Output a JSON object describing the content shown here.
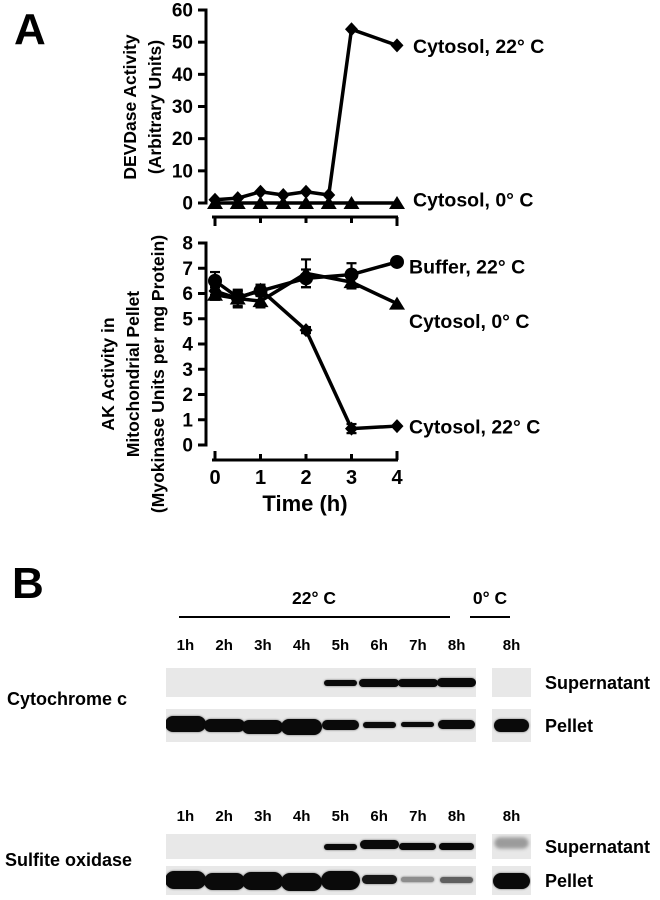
{
  "panels": {
    "a_label": "A",
    "b_label": "B"
  },
  "colors": {
    "ink": "#000000",
    "strip_bg": "#e8e8e8",
    "band": "#0a0a0a",
    "page_bg": "#ffffff"
  },
  "chart_data": [
    {
      "type": "line",
      "title": "",
      "ylabel": "DEVDase Activity (Arbitrary Units)",
      "ylabel_lines": [
        "DEVDase Activity",
        "(Arbitrary Units)"
      ],
      "xlabel": "",
      "ylim": [
        0,
        60
      ],
      "yticks": [
        0,
        10,
        20,
        30,
        40,
        50,
        60
      ],
      "xlim": [
        0,
        4
      ],
      "xticks": [
        0,
        1,
        2,
        3,
        4
      ],
      "xtick_labels_visible": false,
      "grid": false,
      "legend_position": "right-of-last-point",
      "series": [
        {
          "name": "Cytosol, 22° C",
          "marker": "diamond",
          "x": [
            0,
            0.5,
            1,
            1.5,
            2,
            2.5,
            3,
            4
          ],
          "y": [
            1,
            1.5,
            3.5,
            2.5,
            3.5,
            2.5,
            54,
            49
          ],
          "label_dy": 1
        },
        {
          "name": "Cytosol, 0° C",
          "marker": "triangle",
          "x": [
            0,
            0.5,
            1,
            1.5,
            2,
            2.5,
            3,
            4
          ],
          "y": [
            0,
            0,
            0,
            0,
            0,
            0,
            0,
            0
          ],
          "label_dy": -3
        }
      ]
    },
    {
      "type": "line",
      "title": "",
      "ylabel": "AK Activity in Mitochondrial Pellet (Myokinase Units per mg Protein)",
      "ylabel_lines": [
        "AK Activity in",
        "Mitochondrial Pellet",
        "(Myokinase Units per mg Protein)"
      ],
      "xlabel": "Time (h)",
      "ylim": [
        0,
        8
      ],
      "yticks": [
        0,
        1,
        2,
        3,
        4,
        5,
        6,
        7,
        8
      ],
      "xlim": [
        0,
        4
      ],
      "xticks": [
        0,
        1,
        2,
        3,
        4
      ],
      "xtick_labels_visible": true,
      "grid": false,
      "legend_position": "right-of-last-point",
      "series": [
        {
          "name": "Buffer, 22° C",
          "marker": "circle",
          "x": [
            0,
            0.5,
            1,
            2,
            3,
            4
          ],
          "y": [
            6.5,
            5.85,
            6.1,
            6.6,
            6.75,
            7.25
          ],
          "err": [
            0.35,
            0.25,
            0.2,
            0.35,
            0.45,
            0.1
          ],
          "label_dy": 5
        },
        {
          "name": "Cytosol, 0° C",
          "marker": "triangle",
          "x": [
            0,
            0.5,
            1,
            2,
            3,
            4
          ],
          "y": [
            5.95,
            5.8,
            5.7,
            6.8,
            6.45,
            5.6
          ],
          "err": [
            0.2,
            0.35,
            0.25,
            0.55,
            0.25,
            0
          ],
          "label_dy": 18
        },
        {
          "name": "Cytosol, 22° C",
          "marker": "diamond",
          "x": [
            0,
            0.5,
            1,
            2,
            3,
            4
          ],
          "y": [
            6.1,
            5.8,
            6.15,
            4.55,
            0.65,
            0.75
          ],
          "err": [
            0.15,
            0.3,
            0.2,
            0.12,
            0.18,
            0
          ],
          "label_dy": 1
        }
      ]
    }
  ],
  "blots": {
    "temp_22_label": "22° C",
    "temp_0_label": "0° C",
    "lane_labels": [
      "1h",
      "2h",
      "3h",
      "4h",
      "5h",
      "6h",
      "7h",
      "8h"
    ],
    "cold_lane_label": "8h",
    "supernatant_label": "Supernatant",
    "pellet_label": "Pellet",
    "rows": [
      {
        "protein": "Cytochrome c",
        "strips": [
          {
            "fraction": "Supernatant",
            "bands": [
              {
                "l": 4,
                "h": 6,
                "w": 0.85,
                "dy": 0
              },
              {
                "l": 5,
                "h": 8,
                "w": 1.02,
                "dy": 0
              },
              {
                "l": 6,
                "h": 8,
                "w": 1.02,
                "dy": 0
              },
              {
                "l": 7,
                "h": 9,
                "w": 1.0,
                "dy": 0
              }
            ],
            "cold_bands": []
          },
          {
            "fraction": "Pellet",
            "bands": [
              {
                "l": 0,
                "h": 16,
                "w": 1.06,
                "dy": -2
              },
              {
                "l": 1,
                "h": 13,
                "w": 1.06,
                "dy": 0
              },
              {
                "l": 2,
                "h": 14,
                "w": 1.06,
                "dy": 1
              },
              {
                "l": 3,
                "h": 16,
                "w": 1.06,
                "dy": 1
              },
              {
                "l": 4,
                "h": 10,
                "w": 0.95,
                "dy": -1
              },
              {
                "l": 5,
                "h": 6,
                "w": 0.85,
                "dy": -1
              },
              {
                "l": 6,
                "h": 5,
                "w": 0.85,
                "dy": -1
              },
              {
                "l": 7,
                "h": 9,
                "w": 0.95,
                "dy": -1
              }
            ],
            "cold_bands": [
              {
                "h": 13,
                "w": 0.88,
                "dy": 0
              }
            ]
          }
        ]
      },
      {
        "protein": "Sulfite oxidase",
        "strips": [
          {
            "fraction": "Supernatant",
            "bands": [
              {
                "l": 4,
                "h": 6,
                "w": 0.85,
                "dy": 0
              },
              {
                "l": 5,
                "h": 9,
                "w": 1.0,
                "dy": -2
              },
              {
                "l": 6,
                "h": 7,
                "w": 0.95,
                "dy": 0
              },
              {
                "l": 7,
                "h": 7,
                "w": 0.9,
                "dy": 0
              }
            ],
            "cold_bands": [
              {
                "h": 10,
                "w": 0.85,
                "dy": -4,
                "c": "#9b9b9b",
                "blur": 1.5
              }
            ]
          },
          {
            "fraction": "Pellet",
            "bands": [
              {
                "l": 0,
                "h": 18,
                "w": 1.06,
                "dy": -1
              },
              {
                "l": 1,
                "h": 17,
                "w": 1.06,
                "dy": 1
              },
              {
                "l": 2,
                "h": 18,
                "w": 1.06,
                "dy": 0
              },
              {
                "l": 3,
                "h": 18,
                "w": 1.06,
                "dy": 1
              },
              {
                "l": 4,
                "h": 19,
                "w": 1.0,
                "dy": 0
              },
              {
                "l": 5,
                "h": 9,
                "w": 0.9,
                "dy": -1,
                "c": "#161616"
              },
              {
                "l": 6,
                "h": 5,
                "w": 0.85,
                "dy": -1,
                "c": "#8d8d8d"
              },
              {
                "l": 7,
                "h": 6,
                "w": 0.85,
                "dy": -1,
                "c": "#5f5f5f"
              }
            ],
            "cold_bands": [
              {
                "h": 16,
                "w": 0.95,
                "dy": 0
              }
            ]
          }
        ]
      }
    ]
  }
}
